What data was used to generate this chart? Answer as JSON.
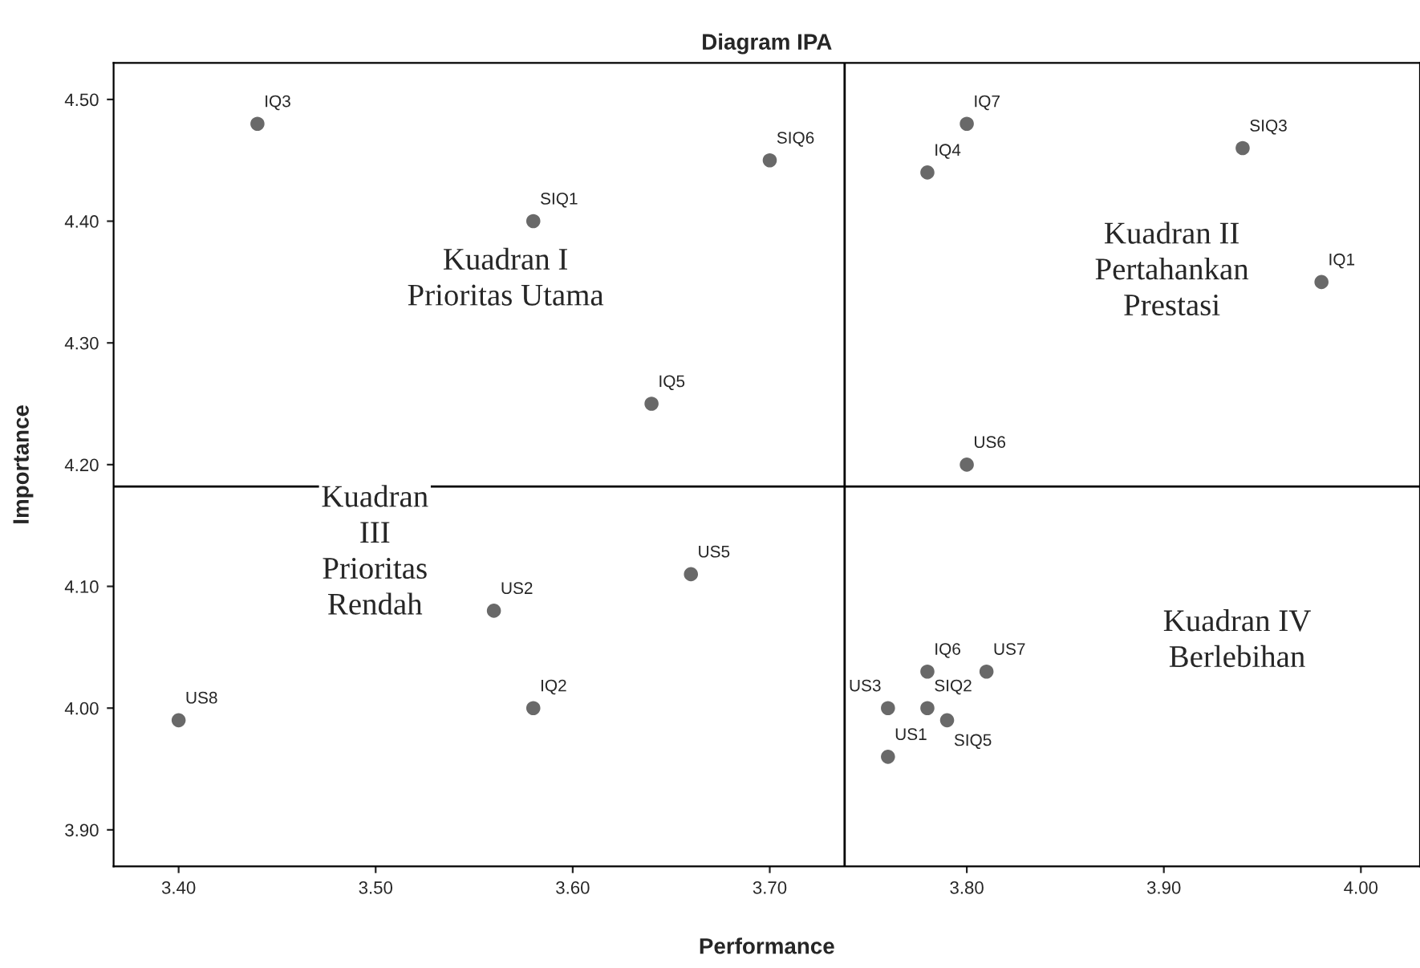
{
  "chart_data": {
    "type": "scatter",
    "title": "Diagram IPA",
    "xlabel": "Performance",
    "ylabel": "Importance",
    "xlim": [
      3.367,
      4.03
    ],
    "ylim": [
      3.87,
      4.53
    ],
    "xticks": [
      {
        "value": 3.4,
        "label": "3.40"
      },
      {
        "value": 3.5,
        "label": "3.50"
      },
      {
        "value": 3.6,
        "label": "3.60"
      },
      {
        "value": 3.7,
        "label": "3.70"
      },
      {
        "value": 3.8,
        "label": "3.80"
      },
      {
        "value": 3.9,
        "label": "3.90"
      },
      {
        "value": 4.0,
        "label": "4.00"
      }
    ],
    "yticks": [
      {
        "value": 3.9,
        "label": "3.90"
      },
      {
        "value": 4.0,
        "label": "4.00"
      },
      {
        "value": 4.1,
        "label": "4.10"
      },
      {
        "value": 4.2,
        "label": "4.20"
      },
      {
        "value": 4.3,
        "label": "4.30"
      },
      {
        "value": 4.4,
        "label": "4.40"
      },
      {
        "value": 4.5,
        "label": "4.50"
      }
    ],
    "grid": false,
    "legend": false,
    "marker": "circle",
    "ref_lines": [
      {
        "axis": "x",
        "value": 3.738,
        "color": "#000000"
      },
      {
        "axis": "y",
        "value": 4.182,
        "color": "#000000"
      }
    ],
    "annotations": [
      "Kuadran I\nPrioritas Utama",
      "Kuadran II\nPertahankan\nPrestasi",
      "Kuadran\nIII\nPrioritas\nRendah",
      "Kuadran IV\nBerlebihan"
    ],
    "series": [
      {
        "name": "IQ3",
        "color": "#696969",
        "x": [
          3.44
        ],
        "values": [
          4.48
        ]
      },
      {
        "name": "SIQ1",
        "color": "#696969",
        "x": [
          3.58
        ],
        "values": [
          4.4
        ]
      },
      {
        "name": "SIQ6",
        "color": "#696969",
        "x": [
          3.7
        ],
        "values": [
          4.45
        ]
      },
      {
        "name": "IQ5",
        "color": "#696969",
        "x": [
          3.64
        ],
        "values": [
          4.25
        ]
      },
      {
        "name": "IQ7",
        "color": "#696969",
        "x": [
          3.8
        ],
        "values": [
          4.48
        ]
      },
      {
        "name": "IQ4",
        "color": "#696969",
        "x": [
          3.78
        ],
        "values": [
          4.44
        ]
      },
      {
        "name": "SIQ3",
        "color": "#696969",
        "x": [
          3.94
        ],
        "values": [
          4.46
        ]
      },
      {
        "name": "IQ1",
        "color": "#696969",
        "x": [
          3.98
        ],
        "values": [
          4.35
        ]
      },
      {
        "name": "US6",
        "color": "#696969",
        "x": [
          3.8
        ],
        "values": [
          4.2
        ]
      },
      {
        "name": "US5",
        "color": "#696969",
        "x": [
          3.66
        ],
        "values": [
          4.11
        ]
      },
      {
        "name": "US2",
        "color": "#696969",
        "x": [
          3.56
        ],
        "values": [
          4.08
        ]
      },
      {
        "name": "IQ2",
        "color": "#696969",
        "x": [
          3.58
        ],
        "values": [
          4.0
        ]
      },
      {
        "name": "US8",
        "color": "#696969",
        "x": [
          3.4
        ],
        "values": [
          3.99
        ]
      },
      {
        "name": "IQ6",
        "color": "#696969",
        "x": [
          3.78
        ],
        "values": [
          4.03
        ]
      },
      {
        "name": "US7",
        "color": "#696969",
        "x": [
          3.81
        ],
        "values": [
          4.03
        ]
      },
      {
        "name": "US3",
        "color": "#696969",
        "x": [
          3.76
        ],
        "values": [
          4.0
        ]
      },
      {
        "name": "SIQ2",
        "color": "#696969",
        "x": [
          3.78
        ],
        "values": [
          4.0
        ]
      },
      {
        "name": "SIQ5",
        "color": "#696969",
        "x": [
          3.79
        ],
        "values": [
          3.99
        ]
      },
      {
        "name": "US1",
        "color": "#696969",
        "x": [
          3.76
        ],
        "values": [
          3.96
        ]
      }
    ]
  }
}
